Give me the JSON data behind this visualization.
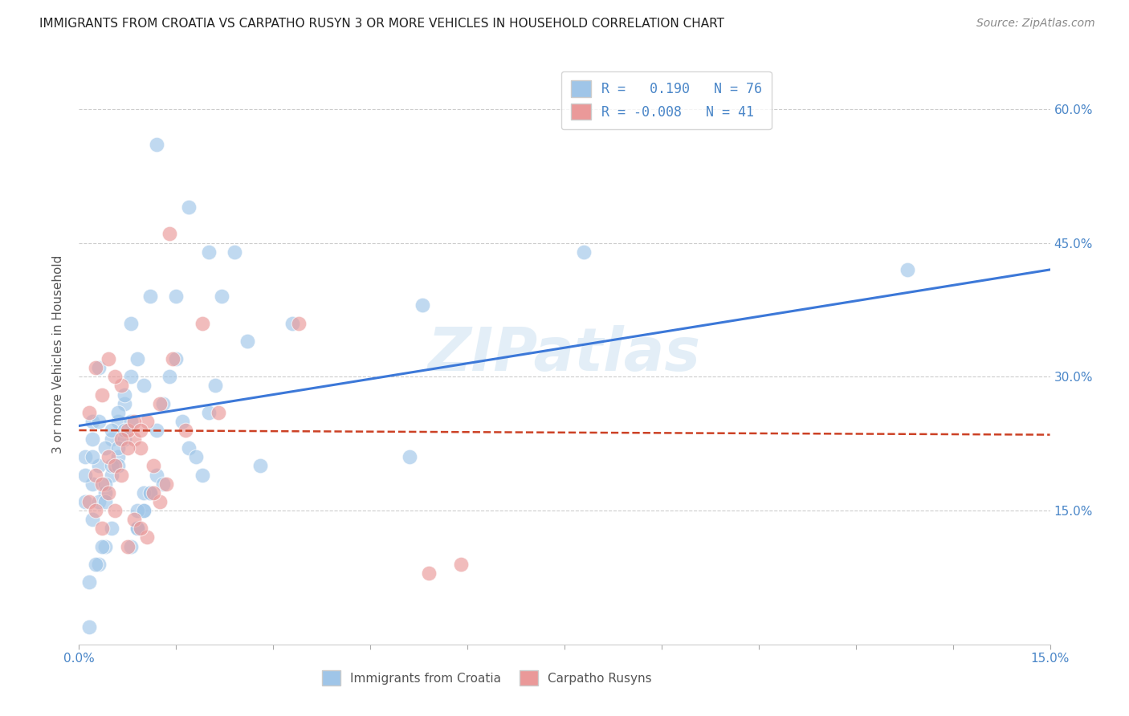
{
  "title": "IMMIGRANTS FROM CROATIA VS CARPATHO RUSYN 3 OR MORE VEHICLES IN HOUSEHOLD CORRELATION CHART",
  "source": "Source: ZipAtlas.com",
  "ylabel_label": "3 or more Vehicles in Household",
  "xlim": [
    0.0,
    15.0
  ],
  "ylim": [
    0.0,
    65.0
  ],
  "yticks": [
    15.0,
    30.0,
    45.0,
    60.0
  ],
  "xtick_positions": [
    0.0,
    1.5,
    3.0,
    4.5,
    6.0,
    7.5,
    9.0,
    10.5,
    12.0,
    13.5,
    15.0
  ],
  "xlabel_only_ends": true,
  "blue_color": "#9fc5e8",
  "pink_color": "#ea9999",
  "blue_line_color": "#3c78d8",
  "pink_line_color": "#cc4125",
  "watermark": "ZIPatlas",
  "legend_line1": "R =   0.190   N = 76",
  "legend_line2": "R = -0.008   N = 41",
  "blue_scatter_x": [
    1.2,
    1.7,
    2.4,
    0.2,
    0.3,
    0.5,
    0.6,
    0.7,
    0.8,
    0.9,
    1.0,
    1.1,
    1.2,
    1.3,
    1.4,
    1.5,
    1.6,
    1.7,
    1.8,
    1.9,
    2.0,
    2.1,
    2.2,
    0.1,
    0.2,
    0.3,
    0.4,
    0.5,
    0.6,
    0.7,
    0.8,
    0.9,
    1.0,
    1.1,
    1.2,
    0.1,
    0.2,
    0.3,
    0.4,
    0.5,
    0.6,
    0.7,
    0.8,
    0.9,
    1.0,
    0.1,
    0.2,
    0.3,
    0.4,
    0.5,
    0.6,
    0.7,
    0.8,
    0.9,
    1.0,
    1.1,
    7.8,
    3.3,
    2.8,
    5.3,
    0.3,
    0.4,
    0.5,
    0.15,
    0.25,
    0.35,
    1.5,
    2.0,
    2.6,
    0.2,
    0.4,
    0.6,
    12.8,
    1.3,
    5.1,
    0.15
  ],
  "blue_scatter_y": [
    56.0,
    49.0,
    44.0,
    25.0,
    31.0,
    23.0,
    25.0,
    27.0,
    36.0,
    32.0,
    29.0,
    39.0,
    24.0,
    27.0,
    30.0,
    32.0,
    25.0,
    22.0,
    21.0,
    19.0,
    26.0,
    29.0,
    39.0,
    16.0,
    18.0,
    20.0,
    22.0,
    24.0,
    26.0,
    28.0,
    30.0,
    13.0,
    15.0,
    17.0,
    19.0,
    21.0,
    23.0,
    25.0,
    17.0,
    19.0,
    21.0,
    23.0,
    25.0,
    15.0,
    17.0,
    19.0,
    14.0,
    16.0,
    18.0,
    20.0,
    22.0,
    24.0,
    11.0,
    13.0,
    15.0,
    17.0,
    44.0,
    36.0,
    20.0,
    38.0,
    9.0,
    11.0,
    13.0,
    7.0,
    9.0,
    11.0,
    39.0,
    44.0,
    34.0,
    21.0,
    16.0,
    20.0,
    42.0,
    18.0,
    21.0,
    2.0
  ],
  "pink_scatter_x": [
    1.4,
    1.9,
    0.25,
    0.45,
    0.65,
    0.85,
    1.05,
    1.25,
    1.45,
    0.15,
    0.35,
    0.55,
    0.75,
    0.95,
    1.15,
    1.35,
    0.25,
    0.45,
    0.65,
    0.85,
    0.15,
    0.35,
    0.55,
    0.75,
    0.95,
    3.4,
    0.25,
    0.45,
    0.65,
    0.85,
    1.05,
    1.25,
    5.4,
    5.9,
    0.35,
    0.55,
    0.75,
    0.95,
    1.15,
    1.65,
    2.15
  ],
  "pink_scatter_y": [
    46.0,
    36.0,
    31.0,
    32.0,
    29.0,
    23.0,
    25.0,
    27.0,
    32.0,
    26.0,
    28.0,
    30.0,
    24.0,
    22.0,
    20.0,
    18.0,
    19.0,
    21.0,
    23.0,
    25.0,
    16.0,
    18.0,
    20.0,
    22.0,
    24.0,
    36.0,
    15.0,
    17.0,
    19.0,
    14.0,
    12.0,
    16.0,
    8.0,
    9.0,
    13.0,
    15.0,
    11.0,
    13.0,
    17.0,
    24.0,
    26.0
  ],
  "blue_trendline_x": [
    0.0,
    15.0
  ],
  "blue_trendline_y": [
    24.5,
    42.0
  ],
  "pink_trendline_x": [
    0.0,
    15.0
  ],
  "pink_trendline_y": [
    24.0,
    23.5
  ]
}
